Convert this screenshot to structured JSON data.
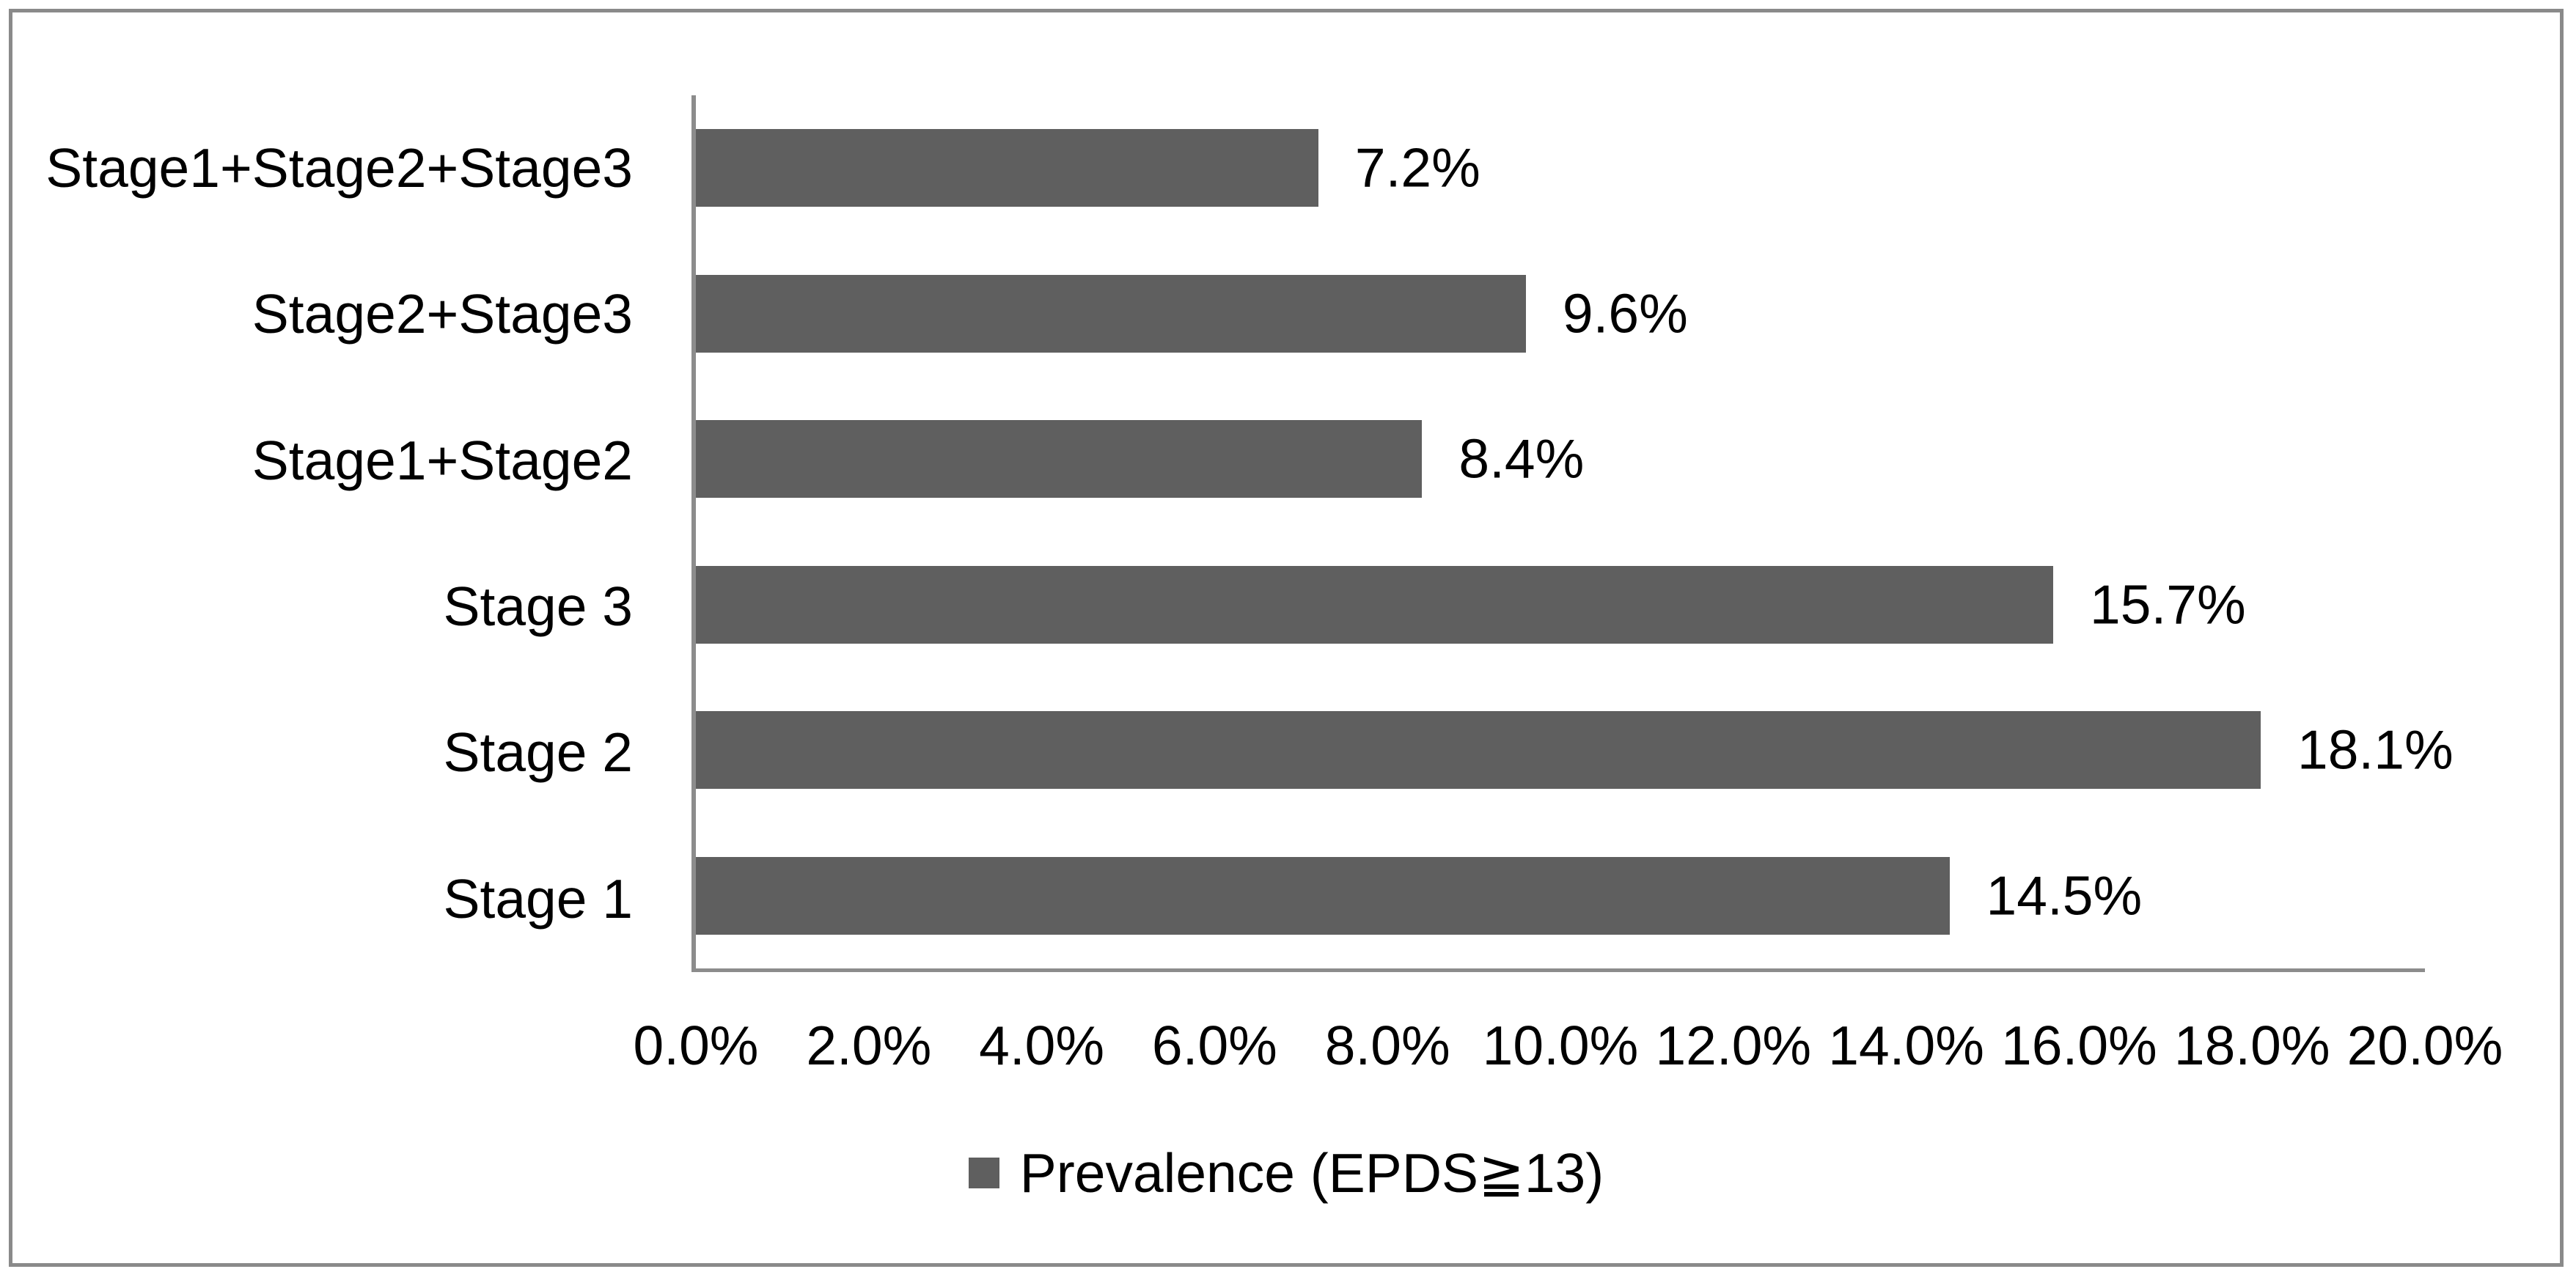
{
  "chart_data": {
    "type": "bar",
    "orientation": "horizontal",
    "title": "",
    "xlabel": "",
    "ylabel": "",
    "categories": [
      "Stage1+Stage2+Stage3",
      "Stage2+Stage3",
      "Stage1+Stage2",
      "Stage 3",
      "Stage 2",
      "Stage 1"
    ],
    "values": [
      7.2,
      9.6,
      8.4,
      15.7,
      18.1,
      14.5
    ],
    "data_labels": [
      "7.2%",
      "9.6%",
      "8.4%",
      "15.7%",
      "18.1%",
      "14.5%"
    ],
    "x_tick_labels": [
      "0.0%",
      "2.0%",
      "4.0%",
      "6.0%",
      "8.0%",
      "10.0%",
      "12.0%",
      "14.0%",
      "16.0%",
      "18.0%",
      "20.0%"
    ],
    "xlim": [
      0,
      20
    ],
    "grid": false,
    "legend": {
      "label": "Prevalence (EPDS≧13)",
      "position": "bottom-center",
      "marker": "square"
    },
    "colors": {
      "bar": "#5F5F5F",
      "axis_line": "#8C8C8C",
      "frame_border": "#8A8A8A",
      "text": "#000000",
      "background": "#FFFFFF"
    }
  }
}
